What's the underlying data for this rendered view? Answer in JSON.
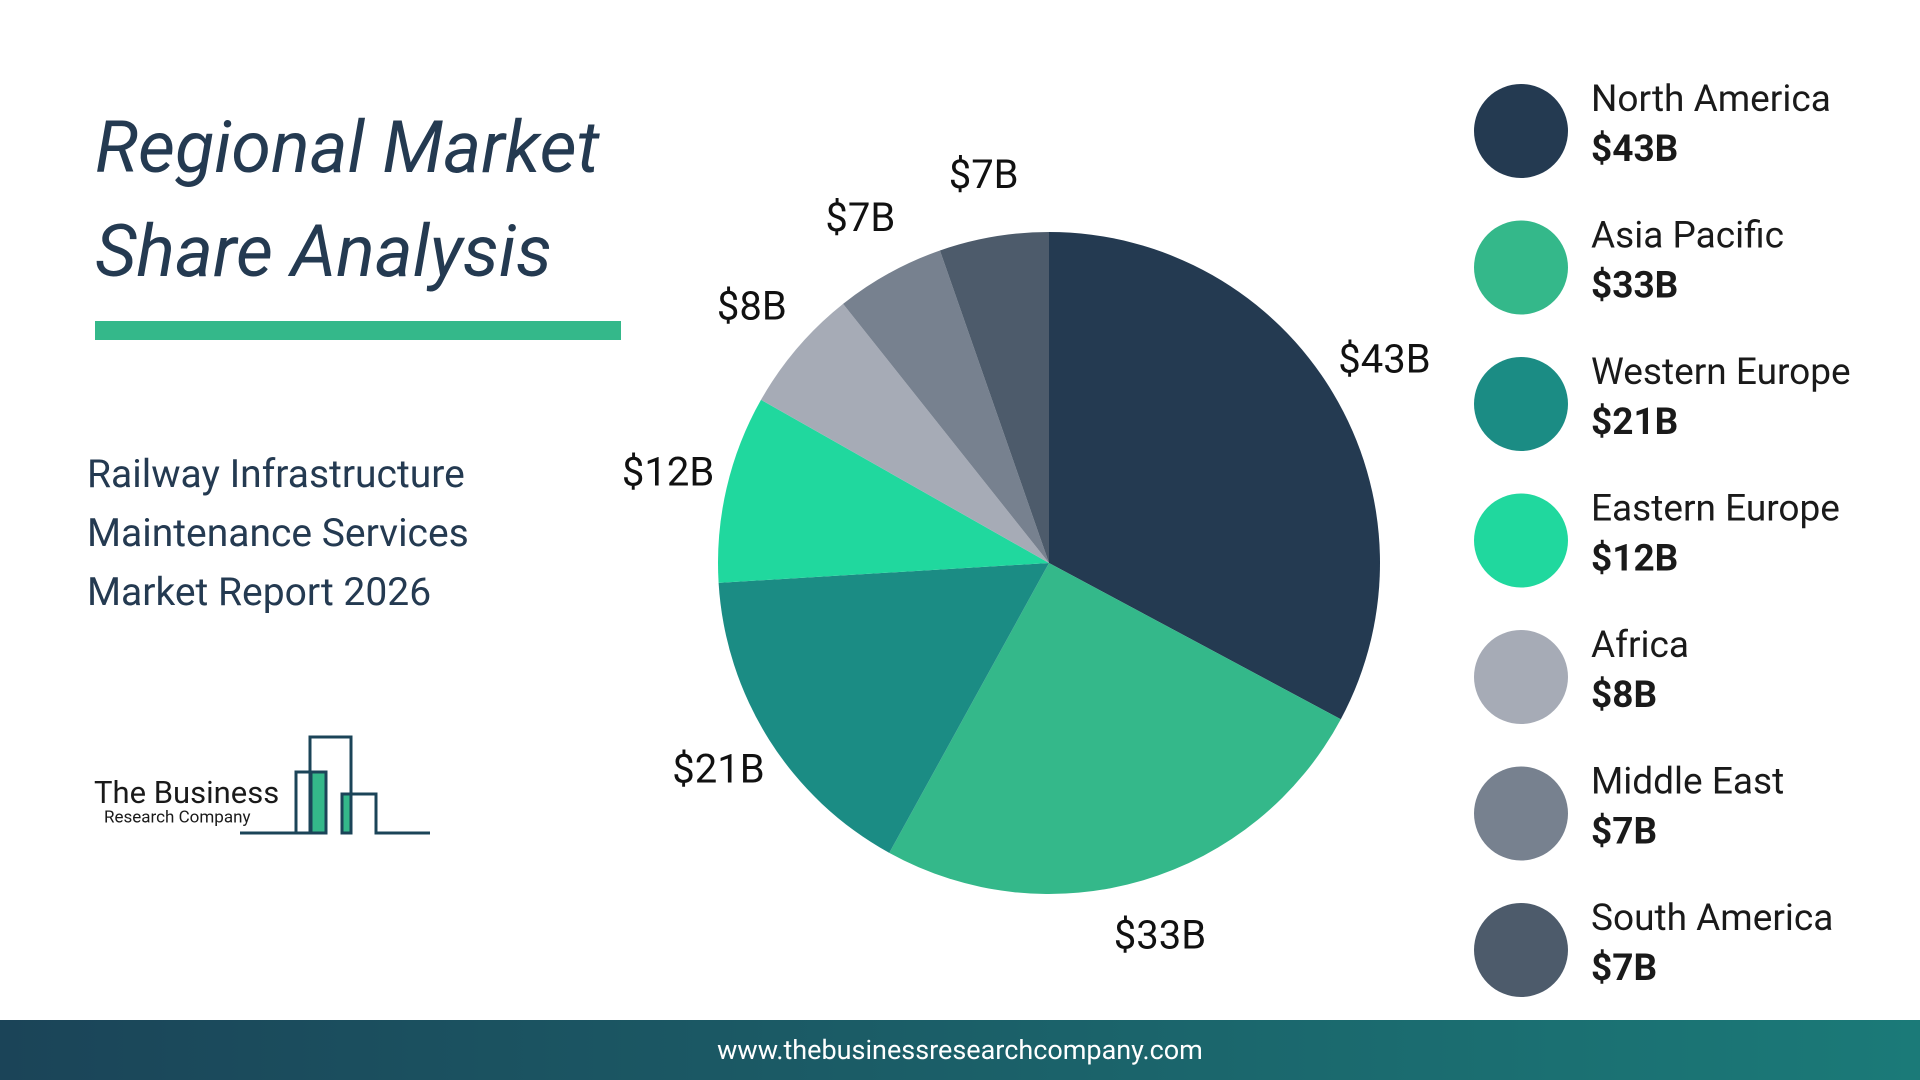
{
  "chart_data": {
    "type": "pie",
    "title": "Regional Market Share Analysis",
    "subtitle": "Railway Infrastructure Maintenance Services Market Report 2026",
    "categories": [
      "North America",
      "Asia Pacific",
      "Western Europe",
      "Eastern Europe",
      "Africa",
      "Middle East",
      "South America"
    ],
    "values": [
      43,
      33,
      21,
      12,
      8,
      7,
      7
    ],
    "value_labels": [
      "$43B",
      "$33B",
      "$21B",
      "$12B",
      "$8B",
      "$7B",
      "$7B"
    ],
    "colors": [
      "#243a51",
      "#34b88a",
      "#1b8c84",
      "#20d89e",
      "#a6abb6",
      "#77818f",
      "#4d5b6b"
    ],
    "legend": "right"
  },
  "logo": {
    "line1": "The Business",
    "line2": "Research Company"
  },
  "footer": {
    "url": "www.thebusinessresearchcompany.com"
  }
}
